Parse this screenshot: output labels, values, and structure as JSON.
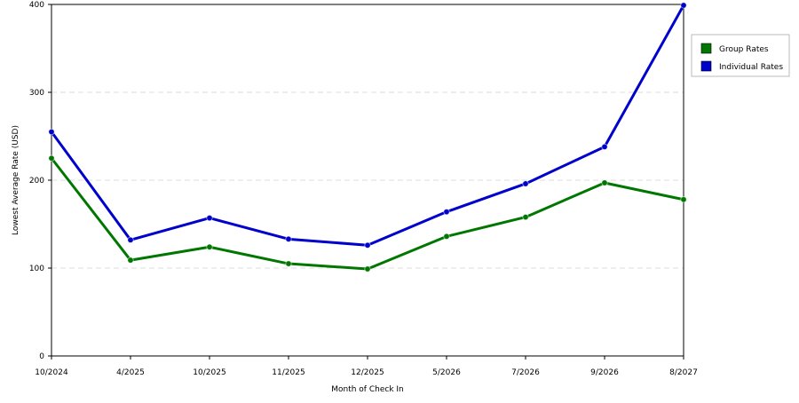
{
  "chart_data": {
    "type": "line",
    "title": "",
    "xlabel": "Month of Check In",
    "ylabel": "Lowest Average Rate (USD)",
    "categories": [
      "10/2024",
      "4/2025",
      "10/2025",
      "11/2025",
      "12/2025",
      "5/2026",
      "7/2026",
      "9/2026",
      "8/2027"
    ],
    "ylim": [
      0,
      400
    ],
    "yticks": [
      0,
      100,
      200,
      300,
      400
    ],
    "grid": true,
    "legend_position": "right",
    "series": [
      {
        "name": "Group Rates",
        "color": "#007700",
        "values": [
          225,
          109,
          124,
          105,
          99,
          136,
          158,
          197,
          178
        ]
      },
      {
        "name": "Individual Rates",
        "color": "#0000cc",
        "values": [
          255,
          132,
          157,
          133,
          126,
          164,
          196,
          238,
          399
        ]
      }
    ]
  }
}
